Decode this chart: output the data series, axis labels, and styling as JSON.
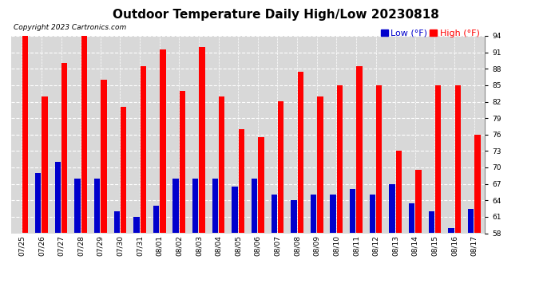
{
  "title": "Outdoor Temperature Daily High/Low 20230818",
  "copyright": "Copyright 2023 Cartronics.com",
  "legend_low": "Low",
  "legend_high": "High",
  "legend_unit": "(°F)",
  "dates": [
    "07/25",
    "07/26",
    "07/27",
    "07/28",
    "07/29",
    "07/30",
    "07/31",
    "08/01",
    "08/02",
    "08/03",
    "08/04",
    "08/05",
    "08/06",
    "08/07",
    "08/08",
    "08/09",
    "08/10",
    "08/11",
    "08/12",
    "08/13",
    "08/14",
    "08/15",
    "08/16",
    "08/17"
  ],
  "highs": [
    94.0,
    83.0,
    89.0,
    94.0,
    86.0,
    81.0,
    88.5,
    91.5,
    84.0,
    92.0,
    83.0,
    77.0,
    75.5,
    82.0,
    87.5,
    83.0,
    85.0,
    88.5,
    85.0,
    73.0,
    69.5,
    85.0,
    85.0,
    76.0
  ],
  "lows": [
    58.0,
    69.0,
    71.0,
    68.0,
    68.0,
    62.0,
    61.0,
    63.0,
    68.0,
    68.0,
    68.0,
    66.5,
    68.0,
    65.0,
    64.0,
    65.0,
    65.0,
    66.0,
    65.0,
    67.0,
    63.5,
    62.0,
    59.0,
    62.5
  ],
  "high_color": "#ff0000",
  "low_color": "#0000cc",
  "bg_color": "#ffffff",
  "plot_bg_color": "#d8d8d8",
  "grid_color": "#ffffff",
  "ymin": 58.0,
  "ymax": 94.0,
  "yticks": [
    58.0,
    61.0,
    64.0,
    67.0,
    70.0,
    73.0,
    76.0,
    79.0,
    82.0,
    85.0,
    88.0,
    91.0,
    94.0
  ],
  "title_fontsize": 11,
  "copyright_fontsize": 6.5,
  "tick_fontsize": 6.5,
  "legend_fontsize": 8
}
